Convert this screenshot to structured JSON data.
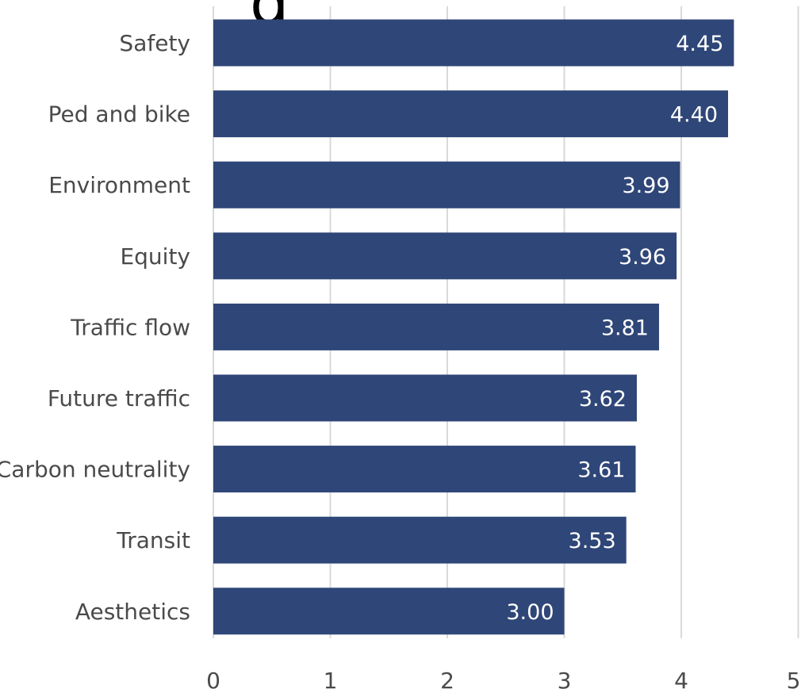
{
  "chart_data": {
    "type": "bar",
    "orientation": "horizontal",
    "title_fragment": "g",
    "categories": [
      "Safety",
      "Ped and bike",
      "Environment",
      "Equity",
      "Traffic flow",
      "Future traffic",
      "Carbon neutrality",
      "Transit",
      "Aesthetics"
    ],
    "values": [
      4.45,
      4.4,
      3.99,
      3.96,
      3.81,
      3.62,
      3.61,
      3.53,
      3.0
    ],
    "value_labels": [
      "4.45",
      "4.40",
      "3.99",
      "3.96",
      "3.81",
      "3.62",
      "3.61",
      "3.53",
      "3.00"
    ],
    "xlim": [
      0,
      5
    ],
    "xticks": [
      "0",
      "1",
      "2",
      "3",
      "4",
      "5"
    ],
    "grid": "vertical",
    "colors": {
      "bar": "#2f4678",
      "grid": "#d9d9d9",
      "text": "#4a4a4a",
      "value_text": "#ffffff"
    }
  }
}
